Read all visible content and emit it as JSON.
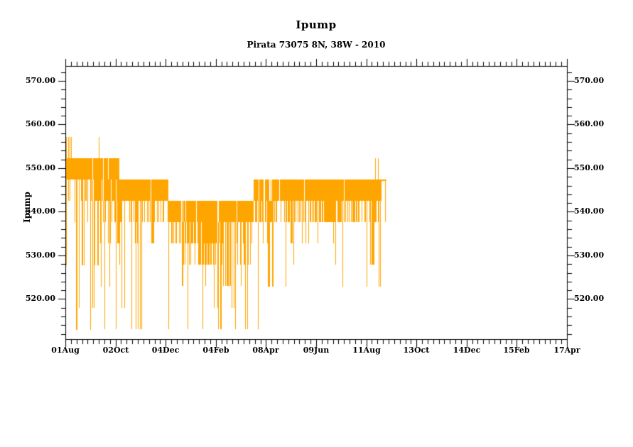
{
  "page": {
    "background": "#FFFFFF"
  },
  "chart_data": {
    "type": "line",
    "title": "Ipump",
    "subtitle": "Pirata 73075 8N, 38W - 2010",
    "ylabel": "Ipump",
    "series_name": "Ipump",
    "series_color": "#FFA500",
    "axis_color": "#000000",
    "text_color": "#000000",
    "grid": false,
    "legend": null,
    "ylim": [
      510.8,
      573.4
    ],
    "y_ticks": [
      {
        "value": 520,
        "label": "520.00"
      },
      {
        "value": 530,
        "label": "530.00"
      },
      {
        "value": 540,
        "label": "540.00"
      },
      {
        "value": 550,
        "label": "550.00"
      },
      {
        "value": 560,
        "label": "560.00"
      },
      {
        "value": 570,
        "label": "570.00"
      }
    ],
    "y_minor_step": 2,
    "x_ticks": [
      "01Aug",
      "02Oct",
      "04Dec",
      "04Feb",
      "08Apr",
      "09Jun",
      "11Aug",
      "13Oct",
      "14Dec",
      "15Feb",
      "17Apr"
    ],
    "x_minor_per_major": 9,
    "quantized_levels": [
      513.0,
      517.9,
      522.9,
      527.8,
      532.7,
      537.6,
      542.5,
      547.4,
      552.3,
      557.2
    ],
    "data_start_frac": 0.0,
    "data_end_frac": 0.636,
    "segments": [
      {
        "x0": 0.0,
        "x1": 0.017,
        "top": 552.3,
        "bottom": 547.4,
        "solid": 0.97,
        "spike_prob": 0.3,
        "spike_levels": [
          542.5,
          537.6
        ],
        "deep_prob": 0.02,
        "deep_levels": [
          527.8
        ],
        "ragged_bottom": false
      },
      {
        "x0": 0.017,
        "x1": 0.069,
        "top": 552.3,
        "bottom": 547.4,
        "solid": 0.95,
        "spike_prob": 0.7,
        "spike_levels": [
          542.5,
          537.6,
          532.7
        ],
        "deep_prob": 0.18,
        "deep_levels": [
          513.0,
          517.9,
          522.9,
          527.8
        ],
        "ragged_bottom": false
      },
      {
        "x0": 0.069,
        "x1": 0.107,
        "top": 552.3,
        "bottom": 542.5,
        "solid": 0.92,
        "spike_prob": 0.55,
        "spike_levels": [
          537.6,
          532.7,
          527.8
        ],
        "deep_prob": 0.12,
        "deep_levels": [
          513.0,
          517.9,
          522.9
        ],
        "ragged_bottom": true
      },
      {
        "x0": 0.107,
        "x1": 0.206,
        "top": 547.4,
        "bottom": 542.5,
        "solid": 0.96,
        "spike_prob": 0.55,
        "spike_levels": [
          537.6,
          532.7,
          527.8
        ],
        "deep_prob": 0.1,
        "deep_levels": [
          513.0,
          517.9,
          522.9
        ],
        "ragged_bottom": false
      },
      {
        "x0": 0.206,
        "x1": 0.253,
        "top": 542.5,
        "bottom": 537.6,
        "solid": 0.96,
        "spike_prob": 0.5,
        "spike_levels": [
          532.7,
          527.8
        ],
        "deep_prob": 0.12,
        "deep_levels": [
          513.0,
          517.9,
          522.9
        ],
        "ragged_bottom": false
      },
      {
        "x0": 0.253,
        "x1": 0.314,
        "top": 542.5,
        "bottom": 532.7,
        "solid": 0.93,
        "spike_prob": 0.45,
        "spike_levels": [
          527.8,
          522.9
        ],
        "deep_prob": 0.1,
        "deep_levels": [
          513.0,
          517.9
        ],
        "ragged_bottom": true
      },
      {
        "x0": 0.314,
        "x1": 0.37,
        "top": 542.5,
        "bottom": 537.6,
        "solid": 0.95,
        "spike_prob": 0.5,
        "spike_levels": [
          532.7,
          527.8,
          522.9
        ],
        "deep_prob": 0.08,
        "deep_levels": [
          513.0,
          517.9
        ],
        "ragged_bottom": false
      },
      {
        "x0": 0.37,
        "x1": 0.436,
        "top": 547.4,
        "bottom": 542.5,
        "solid": 0.78,
        "spike_prob": 0.6,
        "spike_levels": [
          537.6,
          537.6,
          532.7
        ],
        "deep_prob": 0.04,
        "deep_levels": [
          522.9,
          527.8
        ],
        "ragged_bottom": false
      },
      {
        "x0": 0.436,
        "x1": 0.63,
        "top": 547.4,
        "bottom": 542.5,
        "solid": 0.97,
        "spike_prob": 0.58,
        "spike_levels": [
          537.6,
          537.6,
          532.7
        ],
        "deep_prob": 0.03,
        "deep_levels": [
          522.9,
          527.8
        ],
        "ragged_bottom": false
      }
    ],
    "up_spikes": [
      {
        "x": 0.002,
        "from": 552.3,
        "value": 557.2
      },
      {
        "x": 0.005,
        "from": 552.3,
        "value": 557.2
      },
      {
        "x": 0.008,
        "from": 552.3,
        "value": 557.2
      },
      {
        "x": 0.011,
        "from": 552.3,
        "value": 557.2
      },
      {
        "x": 0.066,
        "from": 552.3,
        "value": 557.2
      },
      {
        "x": 0.617,
        "from": 547.4,
        "value": 552.3
      },
      {
        "x": 0.623,
        "from": 547.4,
        "value": 552.3
      }
    ],
    "deep_spikes": [
      {
        "x": 0.001,
        "from": 547.4,
        "value": 527.8
      },
      {
        "x": 0.022,
        "from": 547.4,
        "value": 513.0
      },
      {
        "x": 0.027,
        "from": 547.4,
        "value": 517.9
      },
      {
        "x": 0.05,
        "from": 547.4,
        "value": 513.0
      },
      {
        "x": 0.057,
        "from": 547.4,
        "value": 517.9
      },
      {
        "x": 0.078,
        "from": 542.5,
        "value": 513.0
      },
      {
        "x": 0.101,
        "from": 542.5,
        "value": 513.0
      },
      {
        "x": 0.132,
        "from": 542.5,
        "value": 513.0
      },
      {
        "x": 0.152,
        "from": 542.5,
        "value": 513.0
      },
      {
        "x": 0.205,
        "from": 537.6,
        "value": 513.0
      },
      {
        "x": 0.243,
        "from": 537.6,
        "value": 513.0
      },
      {
        "x": 0.273,
        "from": 532.7,
        "value": 513.0
      },
      {
        "x": 0.296,
        "from": 532.7,
        "value": 517.9
      },
      {
        "x": 0.309,
        "from": 532.7,
        "value": 513.0
      },
      {
        "x": 0.338,
        "from": 537.6,
        "value": 513.0
      },
      {
        "x": 0.384,
        "from": 542.5,
        "value": 513.0
      },
      {
        "x": 0.455,
        "from": 542.5,
        "value": 527.8
      },
      {
        "x": 0.552,
        "from": 542.5,
        "value": 522.9
      },
      {
        "x": 0.601,
        "from": 542.5,
        "value": 522.9
      },
      {
        "x": 0.638,
        "from": 547.4,
        "value": 537.6
      }
    ],
    "tail_line": {
      "x0": 0.63,
      "x1": 0.64,
      "value": 547.4
    }
  }
}
